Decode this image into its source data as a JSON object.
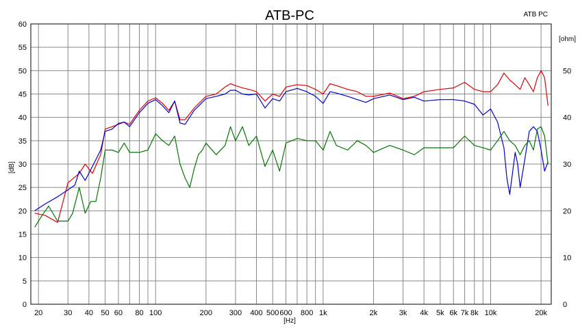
{
  "chart_data": {
    "type": "line",
    "title": "ATB-PC",
    "legend_text": "ATB PC",
    "xlabel": "[Hz]",
    "ylabel_left": "[dB]",
    "ylabel_right": "[ohm]",
    "x_scale": "log",
    "xlim": [
      18,
      23000
    ],
    "ylim_left": [
      0,
      60
    ],
    "ylim_right": [
      0,
      60
    ],
    "grid": true,
    "x_ticks": [
      {
        "value": 20,
        "label": "20"
      },
      {
        "value": 30,
        "label": "30"
      },
      {
        "value": 40,
        "label": "40"
      },
      {
        "value": 50,
        "label": "50"
      },
      {
        "value": 60,
        "label": "60"
      },
      {
        "value": 80,
        "label": "80"
      },
      {
        "value": 100,
        "label": "100"
      },
      {
        "value": 200,
        "label": "200"
      },
      {
        "value": 300,
        "label": "300"
      },
      {
        "value": 400,
        "label": "400"
      },
      {
        "value": 500,
        "label": "500"
      },
      {
        "value": 600,
        "label": "600"
      },
      {
        "value": 800,
        "label": "800"
      },
      {
        "value": 1000,
        "label": "1k"
      },
      {
        "value": 2000,
        "label": "2k"
      },
      {
        "value": 3000,
        "label": "3k"
      },
      {
        "value": 4000,
        "label": "4k"
      },
      {
        "value": 5000,
        "label": "5k"
      },
      {
        "value": 6000,
        "label": "6k"
      },
      {
        "value": 7000,
        "label": "7k"
      },
      {
        "value": 8000,
        "label": "8k"
      },
      {
        "value": 10000,
        "label": "10k"
      },
      {
        "value": 20000,
        "label": "20k"
      }
    ],
    "x_minor_grid": [
      70,
      90,
      700,
      900,
      9000
    ],
    "y_ticks_left": [
      0,
      5,
      10,
      15,
      20,
      25,
      30,
      35,
      40,
      45,
      50,
      55,
      60
    ],
    "y_ticks_right": [
      0,
      10,
      20,
      30,
      40,
      50
    ],
    "series": [
      {
        "color": "#dd0000",
        "axis": "left",
        "x": [
          19,
          22,
          26,
          30,
          35,
          38,
          42,
          47,
          50,
          55,
          60,
          65,
          70,
          80,
          90,
          100,
          110,
          120,
          130,
          140,
          150,
          170,
          200,
          230,
          260,
          280,
          300,
          330,
          360,
          400,
          450,
          500,
          550,
          600,
          700,
          800,
          900,
          1000,
          1100,
          1200,
          1400,
          1600,
          1800,
          2000,
          2500,
          3000,
          3500,
          4000,
          5000,
          6000,
          7000,
          8000,
          9000,
          10000,
          11000,
          12000,
          13000,
          14000,
          15000,
          16000,
          17000,
          18000,
          19000,
          20000,
          21000,
          22000
        ],
        "y": [
          19.5,
          19,
          17.5,
          26,
          28,
          30,
          28,
          32,
          37.5,
          38,
          38.5,
          39,
          38.5,
          41.5,
          43.5,
          44.2,
          43,
          41.5,
          43.5,
          39.5,
          39.5,
          42,
          44.5,
          45,
          46.5,
          47.2,
          46.8,
          46.3,
          46,
          45.5,
          43.5,
          45,
          44.5,
          46.5,
          47,
          46.8,
          46,
          45,
          47.2,
          46.8,
          46,
          45.5,
          44.5,
          44.5,
          45.2,
          44,
          44.5,
          45.5,
          46,
          46.3,
          47.5,
          46,
          45.5,
          45.5,
          47,
          49.5,
          48,
          47,
          46,
          48.5,
          47,
          45.5,
          48.5,
          50,
          48.5,
          42.5
        ]
      },
      {
        "color": "#0000cc",
        "axis": "left",
        "x": [
          19,
          22,
          26,
          30,
          33,
          35,
          38,
          42,
          47,
          50,
          55,
          60,
          65,
          70,
          80,
          90,
          100,
          110,
          120,
          130,
          140,
          150,
          170,
          200,
          230,
          260,
          280,
          300,
          330,
          360,
          400,
          450,
          500,
          550,
          600,
          700,
          800,
          900,
          1000,
          1100,
          1200,
          1400,
          1600,
          1800,
          2000,
          2500,
          3000,
          3500,
          4000,
          5000,
          6000,
          7000,
          8000,
          9000,
          10000,
          11000,
          12000,
          12500,
          13000,
          14000,
          14500,
          15000,
          16000,
          17000,
          18000,
          19000,
          20000,
          21000,
          22000
        ],
        "y": [
          20,
          21.5,
          23,
          24.5,
          25.5,
          28.5,
          26.5,
          29.5,
          33,
          37,
          37.5,
          38.7,
          39,
          38,
          41,
          43,
          43.8,
          42.5,
          41,
          43.5,
          38.8,
          38.5,
          41.5,
          44,
          44.5,
          45,
          45.8,
          45.8,
          45,
          44.8,
          45,
          42,
          44,
          43.5,
          45.5,
          46.2,
          45.5,
          44.5,
          43,
          45.5,
          45.2,
          44.5,
          43.8,
          43.2,
          44,
          44.8,
          43.8,
          44.3,
          43.5,
          43.8,
          43.8,
          43.5,
          42.8,
          40.5,
          41.8,
          39,
          33.5,
          27,
          23.5,
          32.5,
          30,
          25,
          31,
          37,
          38,
          37,
          33,
          28.5,
          30.5
        ]
      },
      {
        "color": "#007700",
        "axis": "left",
        "x": [
          19,
          21,
          23,
          26,
          30,
          32,
          35,
          38,
          41,
          44,
          47,
          50,
          55,
          60,
          65,
          70,
          80,
          90,
          100,
          110,
          120,
          130,
          140,
          150,
          160,
          170,
          180,
          190,
          200,
          230,
          260,
          280,
          300,
          330,
          360,
          400,
          450,
          500,
          550,
          600,
          700,
          800,
          900,
          1000,
          1100,
          1200,
          1400,
          1600,
          1800,
          2000,
          2500,
          3000,
          3500,
          4000,
          5000,
          6000,
          7000,
          8000,
          9000,
          10000,
          11000,
          12000,
          13000,
          14000,
          15000,
          16000,
          17000,
          18000,
          19000,
          20000,
          21000,
          22000
        ],
        "y": [
          16.5,
          19,
          21,
          17.8,
          17.8,
          19.5,
          25,
          19.5,
          22,
          22,
          27,
          33,
          33,
          32.5,
          34.5,
          32.5,
          32.5,
          33,
          36.5,
          35,
          34,
          36,
          30,
          27,
          25,
          29,
          32,
          33,
          34.5,
          32,
          34,
          38,
          35,
          38,
          34,
          36,
          29.5,
          33,
          28.5,
          34.5,
          35.5,
          35,
          35,
          33,
          37,
          34,
          33,
          35,
          34,
          32.5,
          34,
          33,
          32,
          33.5,
          33.5,
          33.5,
          36,
          34,
          33.5,
          33,
          35,
          37,
          35,
          34,
          32,
          34,
          35,
          33,
          37.5,
          38,
          36,
          30
        ]
      }
    ]
  }
}
